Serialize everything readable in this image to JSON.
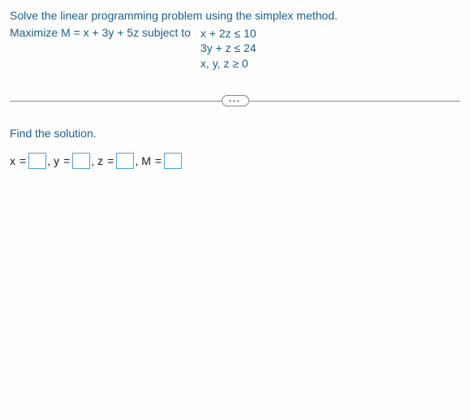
{
  "problem": {
    "instruction": "Solve the linear programming problem using the simplex method.",
    "objective": "Maximize M = x + 3y + 5z subject to",
    "constraints": {
      "c1": "x + 2z ≤ 10",
      "c2": "3y + z ≤ 24",
      "c3": "x, y, z ≥ 0"
    }
  },
  "toggle": {
    "label": "•••"
  },
  "prompt": "Find the solution.",
  "answers": {
    "x_label": "x",
    "y_label": "y",
    "z_label": "z",
    "m_label": "M",
    "eq": "=",
    "comma": ","
  },
  "colors": {
    "text_blue": "#1a5f8f",
    "input_border": "#4aa3df",
    "divider": "#888888",
    "background": "#fefefe"
  }
}
